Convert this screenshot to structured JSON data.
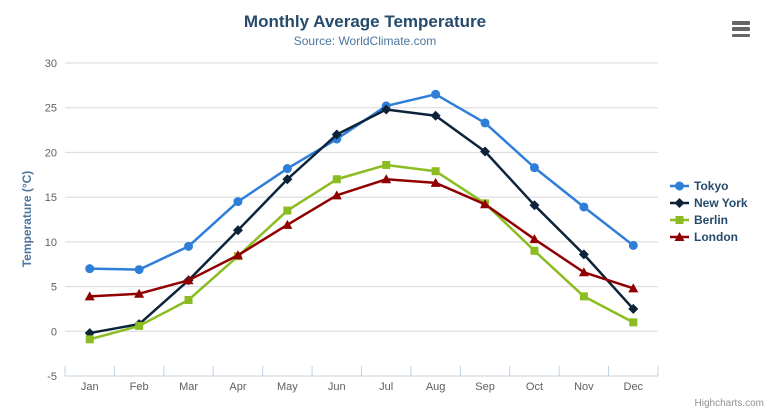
{
  "credits": "Highcharts.com",
  "export_menu": {
    "icon": "hamburger-icon"
  },
  "colors": {
    "grid_line": "#d8d8d8",
    "axis_line": "#c0d0e0",
    "tick_label": "#606060",
    "title": "#274b6d",
    "subtitle": "#4d759e",
    "axis_title": "#4d759e",
    "legend_text": "#274b6d",
    "credits_text": "#909090",
    "background": "#ffffff"
  },
  "chart_data": {
    "type": "line",
    "title": "Monthly Average Temperature",
    "subtitle": "Source: WorldClimate.com",
    "categories": [
      "Jan",
      "Feb",
      "Mar",
      "Apr",
      "May",
      "Jun",
      "Jul",
      "Aug",
      "Sep",
      "Oct",
      "Nov",
      "Dec"
    ],
    "series": [
      {
        "name": "Tokyo",
        "color": "#2f7ed8",
        "marker": "circle",
        "values": [
          7.0,
          6.9,
          9.5,
          14.5,
          18.2,
          21.5,
          25.2,
          26.5,
          23.3,
          18.3,
          13.9,
          9.6
        ]
      },
      {
        "name": "New York",
        "color": "#0d233a",
        "marker": "diamond",
        "values": [
          -0.2,
          0.8,
          5.7,
          11.3,
          17.0,
          22.0,
          24.8,
          24.1,
          20.1,
          14.1,
          8.6,
          2.5
        ]
      },
      {
        "name": "Berlin",
        "color": "#8bbc21",
        "marker": "square",
        "values": [
          -0.9,
          0.6,
          3.5,
          8.4,
          13.5,
          17.0,
          18.6,
          17.9,
          14.3,
          9.0,
          3.9,
          1.0
        ]
      },
      {
        "name": "London",
        "color": "#910000",
        "marker": "triangle",
        "values": [
          3.9,
          4.2,
          5.7,
          8.5,
          11.9,
          15.2,
          17.0,
          16.6,
          14.2,
          10.3,
          6.6,
          4.8
        ]
      }
    ],
    "xlabel": "",
    "ylabel": "Temperature (°C)",
    "ylim": [
      -5,
      30
    ],
    "yticks": [
      -5,
      0,
      5,
      10,
      15,
      20,
      25,
      30
    ],
    "grid": true,
    "legend_position": "right"
  }
}
